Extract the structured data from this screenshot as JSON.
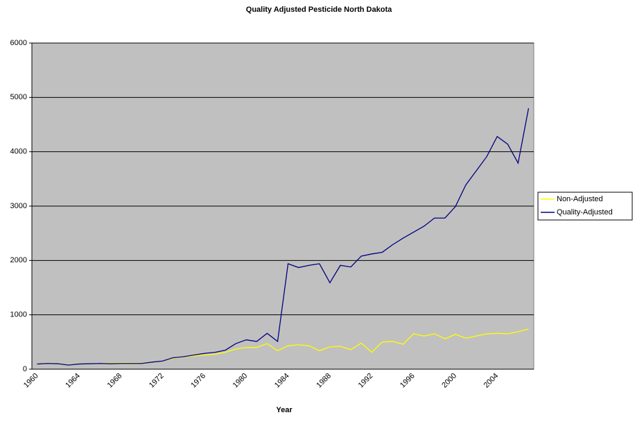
{
  "chart_data": {
    "type": "line",
    "title": "Quality Adjusted Pesticide North Dakota",
    "x_label": "Year",
    "categories": [
      "1960",
      null,
      null,
      null,
      "1964",
      null,
      null,
      null,
      "1968",
      null,
      null,
      null,
      "1972",
      null,
      null,
      null,
      "1976",
      null,
      null,
      null,
      "1980",
      null,
      null,
      null,
      "1984",
      null,
      null,
      null,
      "1988",
      null,
      null,
      null,
      "1992",
      null,
      null,
      null,
      "1996",
      null,
      null,
      null,
      "2000",
      null,
      null,
      null,
      "2004",
      null,
      null,
      null
    ],
    "series": [
      {
        "name": "Non-Adjusted",
        "color": "#ffff00",
        "values": [
          95,
          105,
          100,
          75,
          95,
          100,
          105,
          110,
          115,
          115,
          110,
          130,
          150,
          200,
          225,
          245,
          260,
          275,
          310,
          370,
          400,
          400,
          470,
          340,
          430,
          450,
          430,
          340,
          410,
          420,
          360,
          480,
          310,
          500,
          510,
          460,
          650,
          610,
          650,
          560,
          640,
          570,
          610,
          650,
          660,
          650,
          690,
          740
        ]
      },
      {
        "name": "Quality-Adjusted",
        "color": "#000080",
        "values": [
          95,
          105,
          100,
          75,
          95,
          100,
          105,
          100,
          105,
          105,
          105,
          130,
          150,
          210,
          230,
          260,
          290,
          310,
          350,
          470,
          540,
          510,
          660,
          510,
          1940,
          1870,
          1910,
          1940,
          1590,
          1910,
          1880,
          2080,
          2120,
          2150,
          2290,
          2410,
          2520,
          2630,
          2780,
          2780,
          2990,
          3390,
          3650,
          3910,
          4280,
          4140,
          3790,
          4800
        ]
      }
    ],
    "ylim": [
      0,
      6000
    ],
    "yticks": [
      0,
      1000,
      2000,
      3000,
      4000,
      5000,
      6000
    ],
    "grid": true,
    "plot_background": "#c0c0c0",
    "legend": "right"
  }
}
